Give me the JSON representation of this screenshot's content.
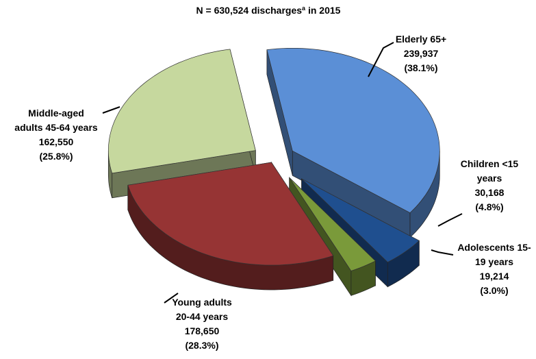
{
  "chart_data": {
    "type": "pie3d",
    "title": "N = 630,524  discharges",
    "title_superscript": "a",
    "title_suffix": " in 2015",
    "categories": [
      [
        "Elderly 65+"
      ],
      [
        "Children <15",
        "years"
      ],
      [
        "Adolescents 15-",
        "19 years"
      ],
      [
        "Young adults",
        "20-44 years"
      ],
      [
        "Middle-aged",
        "adults 45-64 years"
      ]
    ],
    "values": [
      239937,
      30168,
      19214,
      178650,
      162550
    ],
    "value_labels": [
      "239,937",
      "30,168",
      "19,214",
      "178,650",
      "162,550"
    ],
    "percent_labels": [
      "(38.1%)",
      "(4.8%)",
      "(3.0%)",
      "(28.3%)",
      "(25.8%)"
    ],
    "colors": [
      "#5b8fd6",
      "#1f4f8f",
      "#7a9a3a",
      "#963434",
      "#c6d89e"
    ]
  }
}
